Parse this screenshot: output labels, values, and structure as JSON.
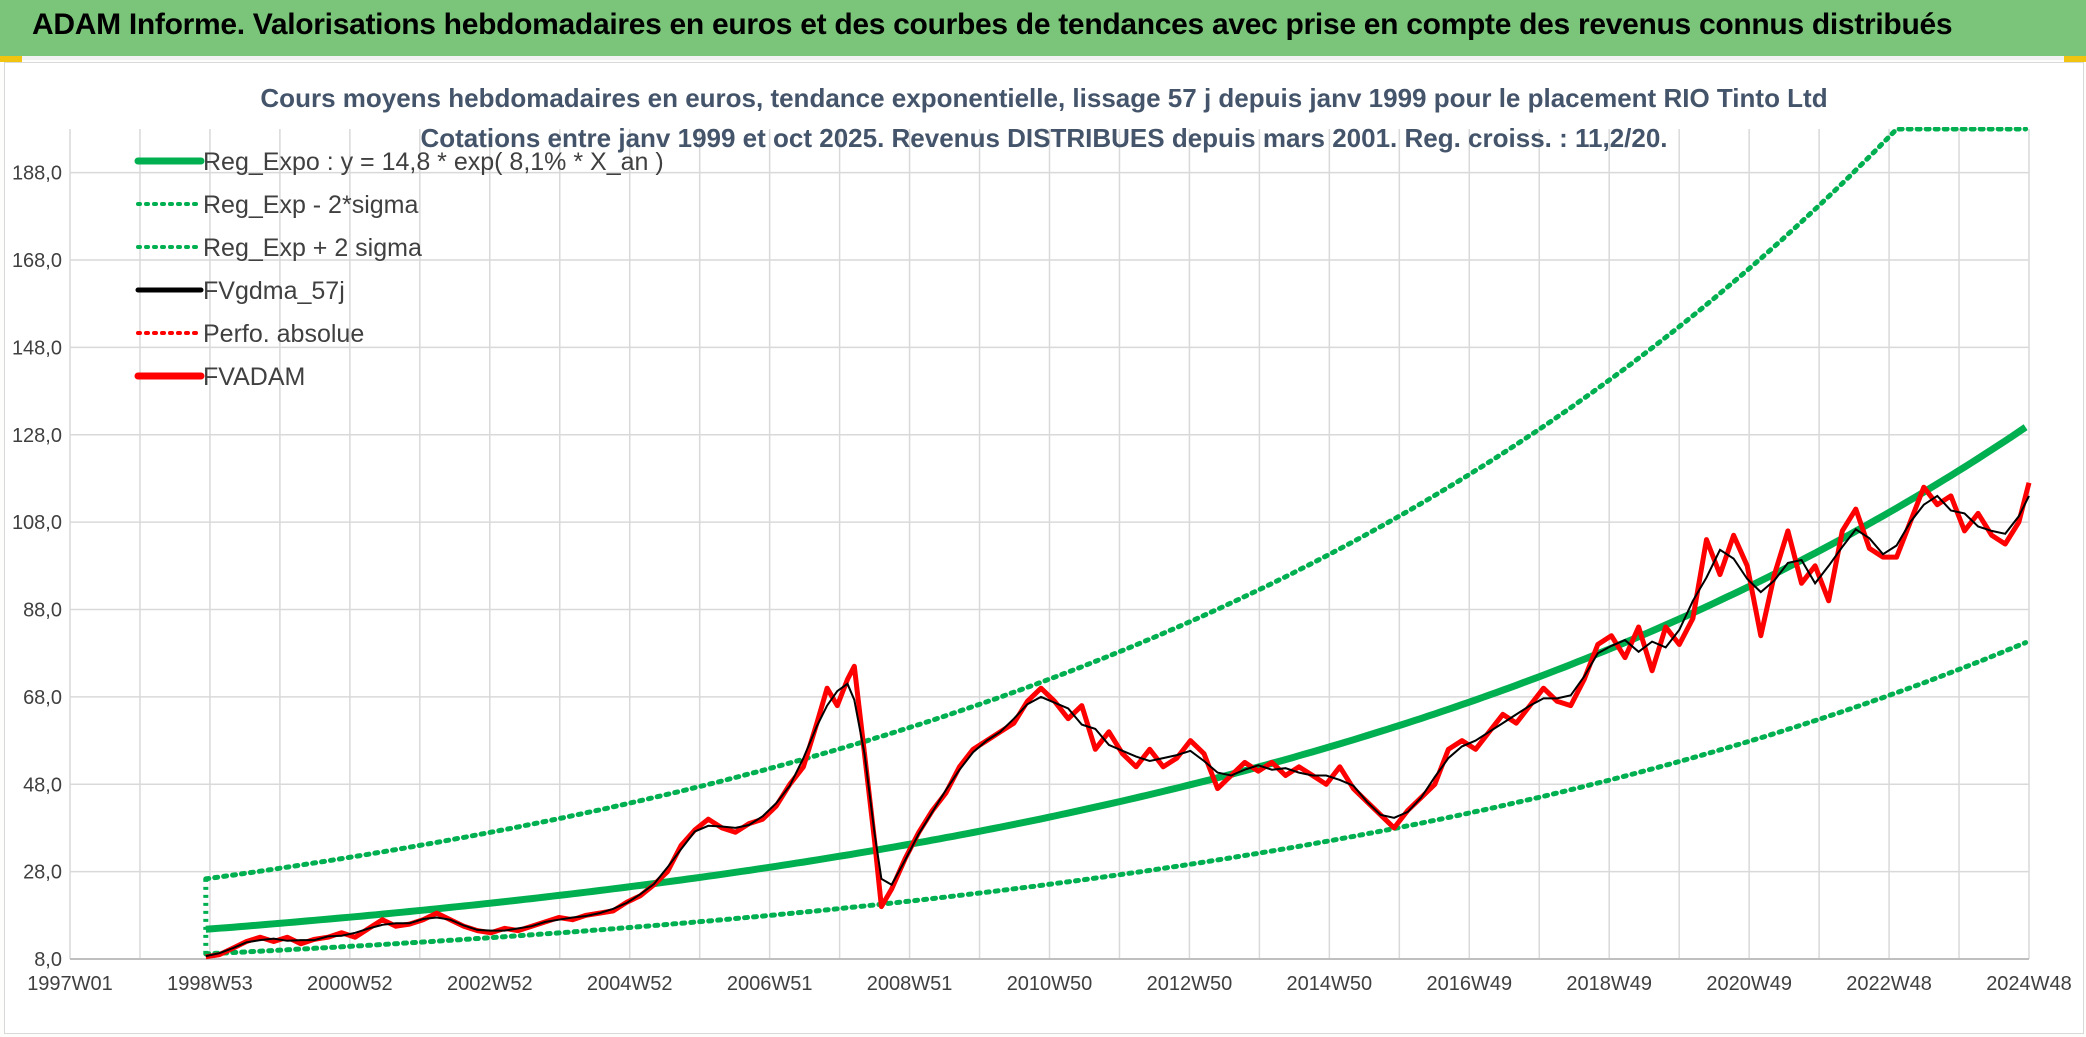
{
  "header": {
    "title": "ADAM Informe. Valorisations hebdomadaires en euros et des courbes de tendances avec prise en compte des revenus connus distribués"
  },
  "colors": {
    "header_bg": "#7ac57a",
    "green": "#00b050",
    "red": "#ff0000",
    "black": "#000000",
    "grid": "#d9d9d9",
    "text": "#404040",
    "title_text": "#44546a"
  },
  "chart_data": {
    "type": "line",
    "title": "Cours moyens hebdomadaires en euros, tendance exponentielle, lissage 57 j depuis janv 1999 pour le placement RIO Tinto Ltd",
    "subtitle": "Cotations entre janv 1999 et oct 2025. Revenus DISTRIBUES depuis mars 2001. Reg. croiss. : 11,2/20.",
    "xlabel": "",
    "ylabel": "",
    "ylim": [
      8,
      198
    ],
    "xlim": [
      1997.0,
      2025.85
    ],
    "yticks": [
      "8,0",
      "28,0",
      "48,0",
      "68,0",
      "88,0",
      "108,0",
      "128,0",
      "148,0",
      "168,0",
      "188,0"
    ],
    "xticks": [
      "1997W01",
      "1998W53",
      "2000W52",
      "2002W52",
      "2004W52",
      "2006W51",
      "2008W51",
      "2010W50",
      "2012W50",
      "2014W50",
      "2016W49",
      "2018W49",
      "2020W49",
      "2022W48",
      "2024W48"
    ],
    "grid": true,
    "legend_position": "top-left",
    "legend": [
      {
        "label": "Reg_Expo : y = 14,8 * exp( 8,1% *  X_an )",
        "style": "solid-thick",
        "color": "#00b050"
      },
      {
        "label": "Reg_Exp - 2*sigma",
        "style": "dotted",
        "color": "#00b050"
      },
      {
        "label": "Reg_Exp + 2 sigma",
        "style": "dotted",
        "color": "#00b050"
      },
      {
        "label": "FVgdma_57j",
        "style": "solid",
        "color": "#000000"
      },
      {
        "label": "Perfo. absolue",
        "style": "dotted",
        "color": "#ff0000"
      },
      {
        "label": "FVADAM",
        "style": "solid-thick",
        "color": "#ff0000"
      }
    ],
    "regression": {
      "a": 14.8,
      "rate": 0.081,
      "x_start": 1999.0,
      "x_end": 2025.85,
      "lower_factor": 0.62,
      "upper_factor": 1.78
    },
    "series": [
      {
        "name": "FVADAM",
        "points": [
          [
            1999.0,
            8.5
          ],
          [
            1999.2,
            9.0
          ],
          [
            1999.4,
            10.5
          ],
          [
            1999.6,
            12.0
          ],
          [
            1999.8,
            13.0
          ],
          [
            2000.0,
            12.0
          ],
          [
            2000.2,
            13.0
          ],
          [
            2000.4,
            11.5
          ],
          [
            2000.6,
            12.5
          ],
          [
            2000.8,
            13.0
          ],
          [
            2001.0,
            14.0
          ],
          [
            2001.2,
            13.0
          ],
          [
            2001.4,
            15.0
          ],
          [
            2001.6,
            17.0
          ],
          [
            2001.8,
            15.5
          ],
          [
            2002.0,
            16.0
          ],
          [
            2002.2,
            17.0
          ],
          [
            2002.4,
            18.5
          ],
          [
            2002.6,
            17.0
          ],
          [
            2002.8,
            15.5
          ],
          [
            2003.0,
            14.5
          ],
          [
            2003.2,
            14.0
          ],
          [
            2003.4,
            15.0
          ],
          [
            2003.6,
            14.5
          ],
          [
            2003.8,
            15.5
          ],
          [
            2004.0,
            16.5
          ],
          [
            2004.2,
            17.5
          ],
          [
            2004.4,
            17.0
          ],
          [
            2004.6,
            18.0
          ],
          [
            2004.8,
            18.5
          ],
          [
            2005.0,
            19.0
          ],
          [
            2005.2,
            21.0
          ],
          [
            2005.4,
            22.5
          ],
          [
            2005.6,
            25.0
          ],
          [
            2005.8,
            28.0
          ],
          [
            2006.0,
            34.0
          ],
          [
            2006.2,
            37.5
          ],
          [
            2006.4,
            40.0
          ],
          [
            2006.6,
            38.0
          ],
          [
            2006.8,
            37.0
          ],
          [
            2007.0,
            39.0
          ],
          [
            2007.2,
            40.0
          ],
          [
            2007.4,
            43.0
          ],
          [
            2007.6,
            48.0
          ],
          [
            2007.8,
            52.0
          ],
          [
            2008.0,
            62.0
          ],
          [
            2008.15,
            70.0
          ],
          [
            2008.3,
            66.0
          ],
          [
            2008.45,
            72.0
          ],
          [
            2008.55,
            75.0
          ],
          [
            2008.7,
            55.0
          ],
          [
            2008.85,
            35.0
          ],
          [
            2008.95,
            20.0
          ],
          [
            2009.1,
            24.0
          ],
          [
            2009.3,
            31.0
          ],
          [
            2009.5,
            37.0
          ],
          [
            2009.7,
            42.0
          ],
          [
            2009.9,
            46.0
          ],
          [
            2010.1,
            52.0
          ],
          [
            2010.3,
            56.0
          ],
          [
            2010.5,
            58.0
          ],
          [
            2010.7,
            60.0
          ],
          [
            2010.9,
            62.0
          ],
          [
            2011.1,
            67.0
          ],
          [
            2011.3,
            70.0
          ],
          [
            2011.5,
            67.0
          ],
          [
            2011.7,
            63.0
          ],
          [
            2011.9,
            66.0
          ],
          [
            2012.1,
            56.0
          ],
          [
            2012.3,
            60.0
          ],
          [
            2012.5,
            55.0
          ],
          [
            2012.7,
            52.0
          ],
          [
            2012.9,
            56.0
          ],
          [
            2013.1,
            52.0
          ],
          [
            2013.3,
            54.0
          ],
          [
            2013.5,
            58.0
          ],
          [
            2013.7,
            55.0
          ],
          [
            2013.9,
            47.0
          ],
          [
            2014.1,
            50.0
          ],
          [
            2014.3,
            53.0
          ],
          [
            2014.5,
            51.0
          ],
          [
            2014.7,
            53.0
          ],
          [
            2014.9,
            50.0
          ],
          [
            2015.1,
            52.0
          ],
          [
            2015.3,
            50.0
          ],
          [
            2015.5,
            48.0
          ],
          [
            2015.7,
            52.0
          ],
          [
            2015.9,
            47.0
          ],
          [
            2016.1,
            44.0
          ],
          [
            2016.3,
            41.0
          ],
          [
            2016.5,
            38.0
          ],
          [
            2016.7,
            42.0
          ],
          [
            2016.9,
            45.0
          ],
          [
            2017.1,
            48.0
          ],
          [
            2017.3,
            56.0
          ],
          [
            2017.5,
            58.0
          ],
          [
            2017.7,
            56.0
          ],
          [
            2017.9,
            60.0
          ],
          [
            2018.1,
            64.0
          ],
          [
            2018.3,
            62.0
          ],
          [
            2018.5,
            66.0
          ],
          [
            2018.7,
            70.0
          ],
          [
            2018.9,
            67.0
          ],
          [
            2019.1,
            66.0
          ],
          [
            2019.3,
            72.0
          ],
          [
            2019.5,
            80.0
          ],
          [
            2019.7,
            82.0
          ],
          [
            2019.9,
            77.0
          ],
          [
            2020.1,
            84.0
          ],
          [
            2020.3,
            74.0
          ],
          [
            2020.5,
            84.0
          ],
          [
            2020.7,
            80.0
          ],
          [
            2020.9,
            86.0
          ],
          [
            2021.1,
            104.0
          ],
          [
            2021.3,
            96.0
          ],
          [
            2021.5,
            105.0
          ],
          [
            2021.7,
            98.0
          ],
          [
            2021.9,
            82.0
          ],
          [
            2022.1,
            96.0
          ],
          [
            2022.3,
            106.0
          ],
          [
            2022.5,
            94.0
          ],
          [
            2022.7,
            98.0
          ],
          [
            2022.9,
            90.0
          ],
          [
            2023.1,
            106.0
          ],
          [
            2023.3,
            111.0
          ],
          [
            2023.5,
            102.0
          ],
          [
            2023.7,
            100.0
          ],
          [
            2023.9,
            100.0
          ],
          [
            2024.1,
            108.0
          ],
          [
            2024.3,
            116.0
          ],
          [
            2024.5,
            112.0
          ],
          [
            2024.7,
            114.0
          ],
          [
            2024.9,
            106.0
          ],
          [
            2025.1,
            110.0
          ],
          [
            2025.3,
            105.0
          ],
          [
            2025.5,
            103.0
          ],
          [
            2025.7,
            108.0
          ],
          [
            2025.85,
            117.0
          ]
        ]
      }
    ]
  }
}
